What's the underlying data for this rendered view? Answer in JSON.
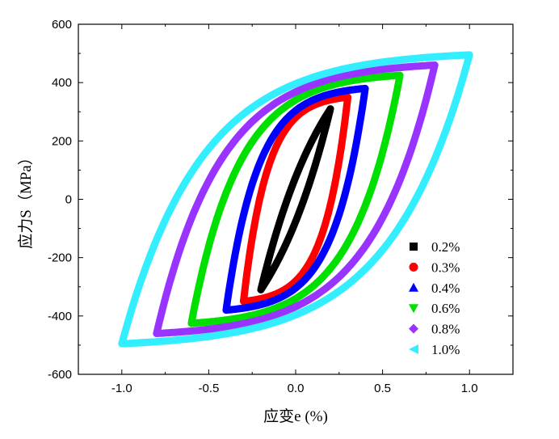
{
  "chart_data": {
    "type": "line",
    "title": "",
    "xlabel": "应变e (%)",
    "ylabel": "应力S（MPa）",
    "xlim": [
      -1.25,
      1.25
    ],
    "ylim": [
      -600,
      600
    ],
    "xticks": [
      -1.0,
      -0.5,
      0.0,
      0.5,
      1.0
    ],
    "xtick_labels": [
      "-1.0",
      "-0.5",
      "0.0",
      "0.5",
      "1.0"
    ],
    "yticks": [
      -600,
      -400,
      -200,
      0,
      200,
      400,
      600
    ],
    "ytick_labels": [
      "-600",
      "-400",
      "-200",
      "0",
      "200",
      "400",
      "600"
    ],
    "grid": false,
    "legend_position": "lower-right",
    "series": [
      {
        "name": "0.2%",
        "marker": "square",
        "color": "#000000",
        "amplitude": 0.2,
        "peak_stress": 310
      },
      {
        "name": "0.3%",
        "marker": "circle",
        "color": "#ff0000",
        "amplitude": 0.3,
        "peak_stress": 350
      },
      {
        "name": "0.4%",
        "marker": "triangle-up",
        "color": "#0000ff",
        "amplitude": 0.4,
        "peak_stress": 380
      },
      {
        "name": "0.6%",
        "marker": "triangle-down",
        "color": "#00e000",
        "amplitude": 0.6,
        "peak_stress": 425
      },
      {
        "name": "0.8%",
        "marker": "diamond",
        "color": "#9933ff",
        "amplitude": 0.8,
        "peak_stress": 460
      },
      {
        "name": "1.0%",
        "marker": "triangle-left",
        "color": "#33eeff",
        "amplitude": 1.0,
        "peak_stress": 495
      }
    ]
  }
}
